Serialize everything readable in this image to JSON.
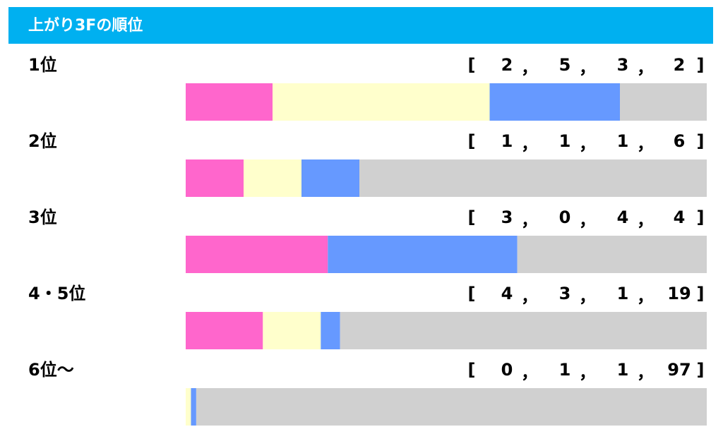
{
  "title": "上がり3Fの順位",
  "bracket_open": "[",
  "bracket_close": "]",
  "separator": "，",
  "colors": [
    "#ff66cc",
    "#ffffcc",
    "#6699ff",
    "#d0d0d0"
  ],
  "rows": [
    {
      "label": "1位",
      "counts": [
        2,
        5,
        3,
        2
      ]
    },
    {
      "label": "2位",
      "counts": [
        1,
        1,
        1,
        6
      ]
    },
    {
      "label": "3位",
      "counts": [
        3,
        0,
        4,
        4
      ]
    },
    {
      "label": "4・5位",
      "counts": [
        4,
        3,
        1,
        19
      ]
    },
    {
      "label": "6位～",
      "counts": [
        0,
        1,
        1,
        97
      ]
    }
  ]
}
